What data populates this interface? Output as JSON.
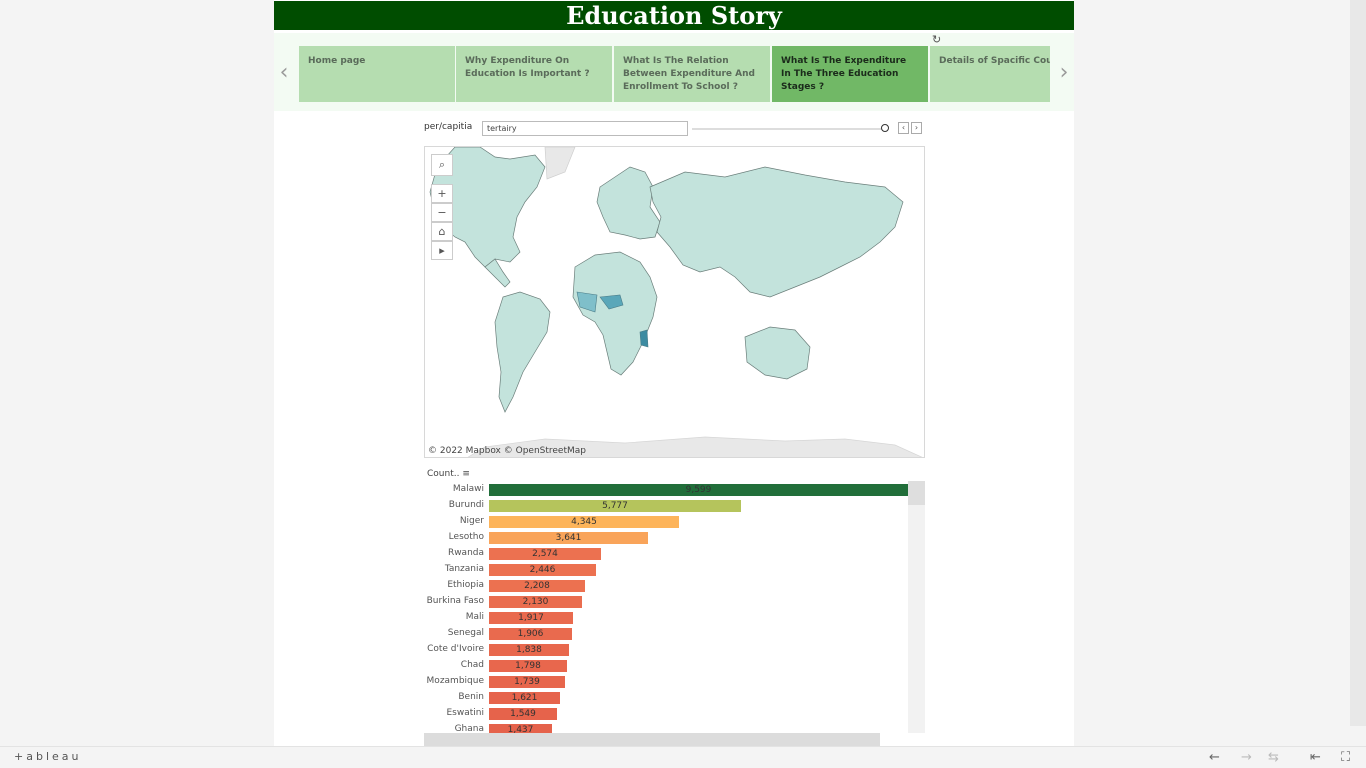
{
  "story": {
    "title": "Education Story",
    "points": [
      {
        "label": "Home page"
      },
      {
        "label": "Why Expenditure On Education Is Important ?"
      },
      {
        "label": "What Is The Relation Between Expenditure And Enrollment To School ?"
      },
      {
        "label": "What Is The Expenditure In The Three Education Stages ?"
      },
      {
        "label": "Details of Spacific Country"
      }
    ],
    "active_index": 3
  },
  "filter": {
    "label": "per/capitia",
    "value": "tertairy"
  },
  "map": {
    "attribution": "© 2022 Mapbox  © OpenStreetMap",
    "colors": {
      "land": "#c3e3dc",
      "border": "#6a7e7a",
      "highlight": "#5aa7b9",
      "nodata": "#e8e8e8"
    }
  },
  "bar_panel": {
    "header": "Count.."
  },
  "chart_data": {
    "type": "bar",
    "orientation": "horizontal",
    "xlabel": "",
    "ylabel": "Count..",
    "xlim": [
      0,
      9599
    ],
    "categories": [
      "Malawi",
      "Burundi",
      "Niger",
      "Lesotho",
      "Rwanda",
      "Tanzania",
      "Ethiopia",
      "Burkina Faso",
      "Mali",
      "Senegal",
      "Cote d'Ivoire",
      "Chad",
      "Mozambique",
      "Benin",
      "Eswatini",
      "Ghana"
    ],
    "values": [
      9599,
      5777,
      4345,
      3641,
      2574,
      2446,
      2208,
      2130,
      1917,
      1906,
      1838,
      1798,
      1739,
      1621,
      1549,
      1437
    ],
    "labels": [
      "9,599",
      "5,777",
      "4,345",
      "3,641",
      "2,574",
      "2,446",
      "2,208",
      "2,130",
      "1,917",
      "1,906",
      "1,838",
      "1,798",
      "1,739",
      "1,621",
      "1,549",
      "1,437"
    ],
    "colors": [
      "#216e3a",
      "#b5c45c",
      "#fdb45a",
      "#f9a45a",
      "#ec7150",
      "#ec7150",
      "#ec7150",
      "#ea6d4f",
      "#e96a4e",
      "#e96a4e",
      "#e8684d",
      "#e8674d",
      "#e7664c",
      "#e6644c",
      "#e6634b",
      "#e5624b"
    ]
  },
  "toolbar": {
    "logo": "+ableau"
  }
}
